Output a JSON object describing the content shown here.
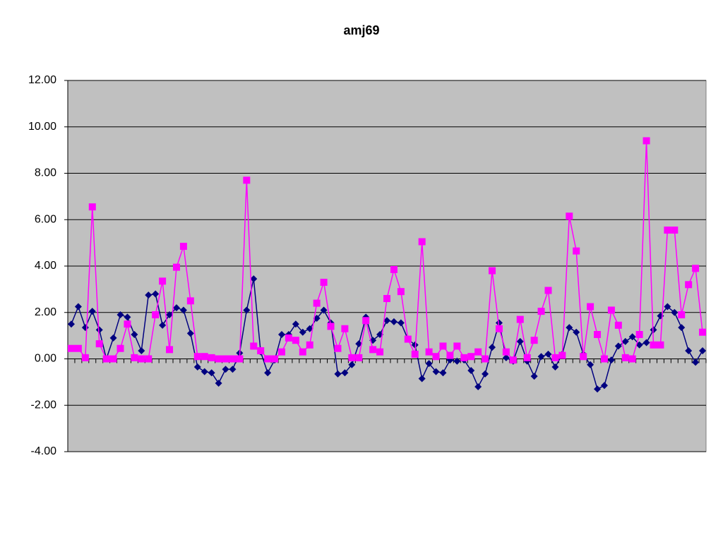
{
  "chart_data": {
    "type": "line",
    "title": "amj69",
    "ylim": [
      -4,
      12
    ],
    "yticks": [
      {
        "value": -4,
        "label": "-4.00"
      },
      {
        "value": -2,
        "label": "-2.00"
      },
      {
        "value": 0,
        "label": "0.00"
      },
      {
        "value": 2,
        "label": "2.00"
      },
      {
        "value": 4,
        "label": "4.00"
      },
      {
        "value": 6,
        "label": "6.00"
      },
      {
        "value": 8,
        "label": "8.00"
      },
      {
        "value": 10,
        "label": "10.00"
      },
      {
        "value": 12,
        "label": "12.00"
      }
    ],
    "grid": true,
    "background": "#c0c0c0",
    "series": [
      {
        "color": "#000080",
        "marker": "diamond",
        "values": [
          1.5,
          2.25,
          1.35,
          2.05,
          1.25,
          0,
          0.9,
          1.9,
          1.8,
          1.05,
          0.35,
          2.75,
          2.8,
          1.45,
          1.9,
          2.2,
          2.1,
          1.1,
          -0.35,
          -0.55,
          -0.6,
          -1.05,
          -0.45,
          -0.45,
          0.25,
          2.1,
          3.45,
          0.3,
          -0.6,
          -0.05,
          1.05,
          1.05,
          1.5,
          1.15,
          1.3,
          1.75,
          2.1,
          1.55,
          -0.65,
          -0.6,
          -0.25,
          0.65,
          1.8,
          0.8,
          1.05,
          1.65,
          1.6,
          1.55,
          0.85,
          0.6,
          -0.85,
          -0.2,
          -0.55,
          -0.6,
          -0.05,
          -0.1,
          -0.05,
          -0.5,
          -1.2,
          -0.65,
          0.5,
          1.55,
          0.05,
          -0.1,
          0.75,
          -0.1,
          -0.75,
          0.1,
          0.2,
          -0.35,
          0.2,
          1.35,
          1.15,
          0.2,
          -0.25,
          -1.3,
          -1.15,
          -0.05,
          0.55,
          0.75,
          0.95,
          0.6,
          0.7,
          1.25,
          1.85,
          2.25,
          2.0,
          1.35,
          0.35,
          -0.15,
          0.35
        ]
      },
      {
        "color": "#ff00ff",
        "marker": "square",
        "values": [
          0.45,
          0.45,
          0.05,
          6.55,
          0.65,
          0,
          0,
          0.45,
          1.5,
          0.05,
          0,
          0,
          1.9,
          3.35,
          0.4,
          3.95,
          4.85,
          2.5,
          0.1,
          0.1,
          0.05,
          0,
          0,
          0,
          0,
          7.7,
          0.55,
          0.35,
          0,
          0,
          0.3,
          0.9,
          0.8,
          0.3,
          0.6,
          2.4,
          3.3,
          1.4,
          0.45,
          1.3,
          0.05,
          0.05,
          1.65,
          0.4,
          0.3,
          2.6,
          3.85,
          2.9,
          0.85,
          0.2,
          5.05,
          0.3,
          0.1,
          0.55,
          0.15,
          0.55,
          0.05,
          0.1,
          0.3,
          0,
          3.8,
          1.3,
          0.3,
          -0.05,
          1.7,
          0.05,
          0.8,
          2.05,
          2.95,
          0.05,
          0.15,
          6.15,
          4.65,
          0.1,
          2.25,
          1.05,
          0,
          2.1,
          1.45,
          0.05,
          0,
          1.05,
          9.4,
          0.6,
          0.6,
          5.55,
          5.55,
          1.9,
          3.2,
          3.9,
          1.15
        ]
      }
    ]
  }
}
